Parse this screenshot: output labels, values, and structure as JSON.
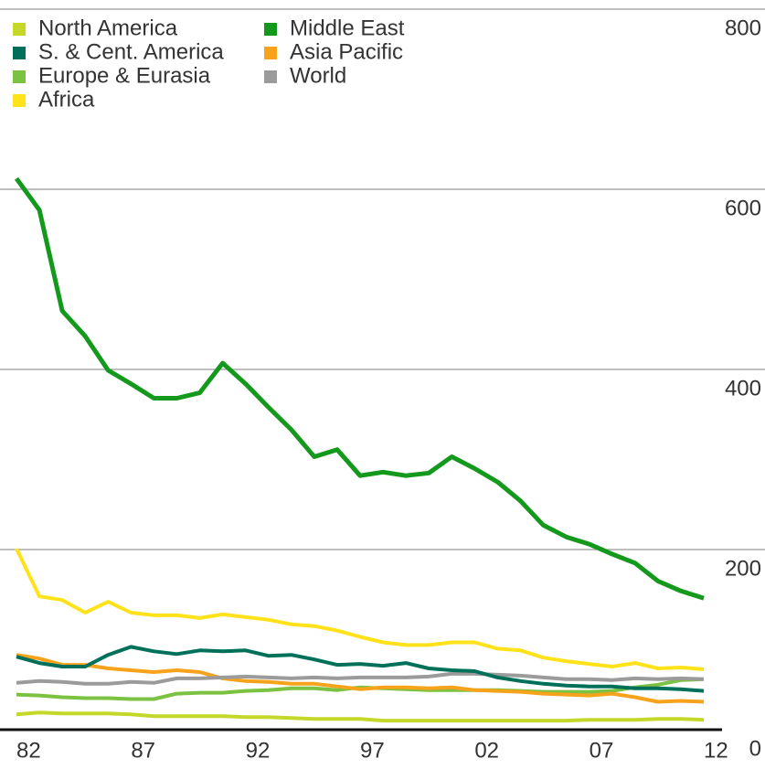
{
  "chart_data": {
    "type": "line",
    "categories": [
      "82",
      null,
      null,
      null,
      null,
      "87",
      null,
      null,
      null,
      null,
      "92",
      null,
      null,
      null,
      null,
      "97",
      null,
      null,
      null,
      null,
      "02",
      null,
      null,
      null,
      null,
      "07",
      null,
      null,
      null,
      null,
      "12"
    ],
    "series": [
      {
        "name": "North America",
        "color": "#c5d82a",
        "values": [
          17,
          19,
          18,
          18,
          18,
          17,
          15,
          15,
          15,
          15,
          14,
          14,
          13,
          12,
          12,
          12,
          10,
          10,
          10,
          10,
          10,
          10,
          10,
          10,
          10,
          11,
          11,
          11,
          12,
          12,
          11
        ]
      },
      {
        "name": "S. & Cent. America",
        "color": "#00705a",
        "values": [
          81,
          74,
          70,
          70,
          83,
          92,
          87,
          84,
          88,
          87,
          88,
          82,
          83,
          78,
          72,
          73,
          71,
          74,
          68,
          66,
          65,
          58,
          54,
          51,
          49,
          48,
          48,
          46,
          46,
          45,
          43
        ]
      },
      {
        "name": "Europe & Eurasia",
        "color": "#7cc242",
        "values": [
          39,
          38,
          36,
          35,
          35,
          34,
          34,
          40,
          41,
          41,
          43,
          44,
          46,
          46,
          44,
          47,
          46,
          45,
          44,
          44,
          44,
          44,
          43,
          42,
          42,
          42,
          43,
          47,
          50,
          55,
          56
        ]
      },
      {
        "name": "Africa",
        "color": "#ffe21a",
        "values": [
          201,
          148,
          144,
          130,
          142,
          130,
          127,
          127,
          124,
          128,
          125,
          122,
          117,
          115,
          110,
          103,
          97,
          94,
          94,
          97,
          97,
          90,
          88,
          80,
          76,
          73,
          70,
          74,
          68,
          69,
          67
        ]
      },
      {
        "name": "Middle East",
        "color": "#14991c",
        "values": [
          612,
          577,
          465,
          437,
          399,
          384,
          368,
          368,
          374,
          407,
          384,
          358,
          333,
          303,
          311,
          282,
          286,
          282,
          285,
          303,
          290,
          275,
          254,
          227,
          214,
          206,
          195,
          185,
          165,
          154,
          146
        ]
      },
      {
        "name": "Asia Pacific",
        "color": "#f7a21b",
        "values": [
          83,
          79,
          72,
          72,
          68,
          66,
          64,
          66,
          64,
          57,
          54,
          53,
          51,
          51,
          48,
          45,
          47,
          47,
          46,
          47,
          44,
          43,
          42,
          40,
          39,
          38,
          40,
          36,
          31,
          32,
          31
        ]
      },
      {
        "name": "World",
        "color": "#9b9b9b",
        "values": [
          52,
          54,
          53,
          51,
          51,
          53,
          52,
          57,
          57,
          58,
          59,
          58,
          57,
          58,
          57,
          58,
          58,
          58,
          59,
          62,
          62,
          61,
          60,
          58,
          56,
          56,
          55,
          57,
          56,
          57,
          56
        ]
      }
    ],
    "ylim": [
      0,
      800
    ],
    "yticks": [
      0,
      200,
      400,
      600,
      800
    ],
    "grid": true
  }
}
